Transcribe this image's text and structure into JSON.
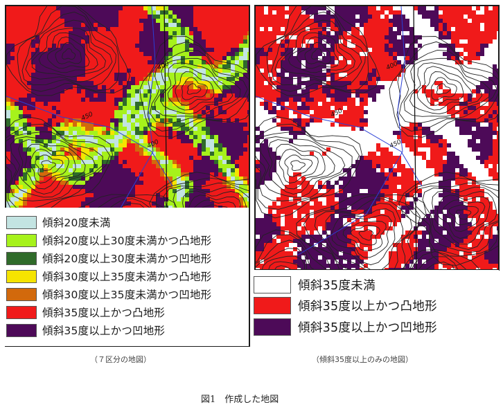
{
  "left_map": {
    "caption": "（７区分の地図）",
    "contour_labels": [
      "400",
      "450",
      "400"
    ],
    "legend": [
      {
        "label": "傾斜20度未満",
        "color": "#c3e4e2"
      },
      {
        "label": "傾斜20度以上30度未満かつ凸地形",
        "color": "#a6f21b"
      },
      {
        "label": "傾斜20度以上30度未満かつ凹地形",
        "color": "#2f6b2a"
      },
      {
        "label": "傾斜30度以上35度未満かつ凸地形",
        "color": "#f5e400"
      },
      {
        "label": "傾斜30度以上35度未満かつ凹地形",
        "color": "#d2690c"
      },
      {
        "label": "傾斜35度以上かつ凸地形",
        "color": "#f01a1a"
      },
      {
        "label": "傾斜35度以上かつ凹地形",
        "color": "#4d0a58"
      }
    ]
  },
  "right_map": {
    "caption": "（傾斜35度以上のみの地図）",
    "contour_labels": [
      "400",
      "450",
      "450"
    ],
    "legend": [
      {
        "label": "傾斜35度未満",
        "color": "#ffffff"
      },
      {
        "label": "傾斜35度以上かつ凸地形",
        "color": "#f01a1a"
      },
      {
        "label": "傾斜35度以上かつ凹地形",
        "color": "#4d0a58"
      }
    ]
  },
  "figure_caption": "図1　作成した地図"
}
